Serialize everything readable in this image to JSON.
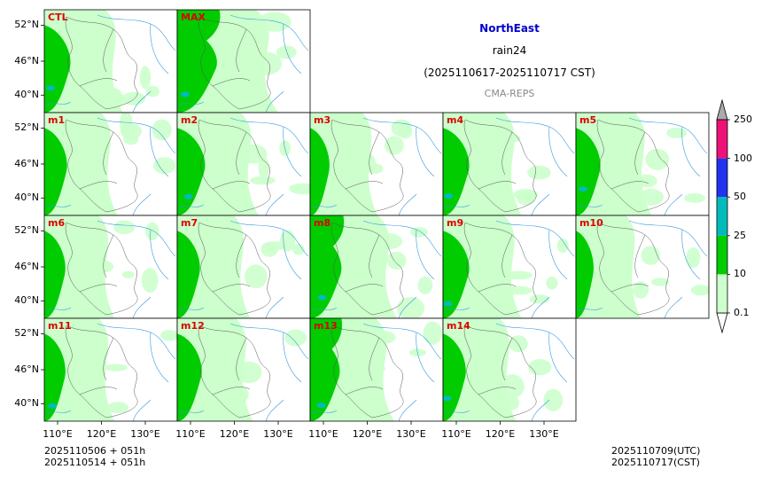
{
  "title": {
    "region": "NorthEast",
    "variable": "rain24",
    "period": "(2025110617-2025110717 CST)",
    "model": "CMA-REPS",
    "region_color": "#0000cc",
    "model_color": "#888888"
  },
  "panels": [
    {
      "label": "CTL",
      "row": 0,
      "col": 0,
      "intensity": 0.55
    },
    {
      "label": "MAX",
      "row": 0,
      "col": 1,
      "intensity": 0.95
    },
    {
      "label": "m1",
      "row": 1,
      "col": 0,
      "intensity": 0.45
    },
    {
      "label": "m2",
      "row": 1,
      "col": 1,
      "intensity": 0.6
    },
    {
      "label": "m3",
      "row": 1,
      "col": 2,
      "intensity": 0.35
    },
    {
      "label": "m4",
      "row": 1,
      "col": 3,
      "intensity": 0.55
    },
    {
      "label": "m5",
      "row": 1,
      "col": 4,
      "intensity": 0.5
    },
    {
      "label": "m6",
      "row": 2,
      "col": 0,
      "intensity": 0.4
    },
    {
      "label": "m7",
      "row": 2,
      "col": 1,
      "intensity": 0.45
    },
    {
      "label": "m8",
      "row": 2,
      "col": 2,
      "intensity": 0.7
    },
    {
      "label": "m9",
      "row": 2,
      "col": 3,
      "intensity": 0.55
    },
    {
      "label": "m10",
      "row": 2,
      "col": 4,
      "intensity": 0.3
    },
    {
      "label": "m11",
      "row": 3,
      "col": 0,
      "intensity": 0.4
    },
    {
      "label": "m12",
      "row": 3,
      "col": 1,
      "intensity": 0.5
    },
    {
      "label": "m13",
      "row": 3,
      "col": 2,
      "intensity": 0.65
    },
    {
      "label": "m14",
      "row": 3,
      "col": 3,
      "intensity": 0.45
    }
  ],
  "chart_data": {
    "type": "heatmap",
    "title": "NorthEast rain24 (2025110617-2025110717 CST) CMA-REPS",
    "xlabel": "",
    "ylabel": "",
    "x_ticks": [
      "110°E",
      "120°E",
      "130°E"
    ],
    "y_ticks": [
      "52°N",
      "46°N",
      "40°N"
    ],
    "colorbar": {
      "levels": [
        "0.1",
        "10",
        "25",
        "50",
        "100",
        "250"
      ],
      "colors": [
        "#ccffcc",
        "#00cc00",
        "#00bbbb",
        "#2233ee",
        "#ee1177",
        "#aaaaaa"
      ]
    },
    "label_color": "#dd0000"
  },
  "footer": {
    "left_line1": "2025110506  +  051h",
    "left_line2": "2025110514  +  051h",
    "right_line1": "2025110709(UTC)",
    "right_line2": "2025110717(CST)"
  }
}
